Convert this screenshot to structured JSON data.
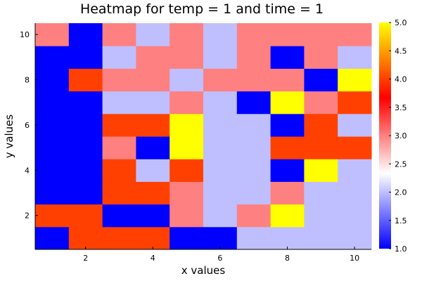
{
  "chart_data": {
    "type": "heatmap",
    "title": "Heatmap for temp = 1 and time = 1",
    "xlabel": "x values",
    "ylabel": "y values",
    "x": [
      1,
      2,
      3,
      4,
      5,
      6,
      7,
      8,
      9,
      10
    ],
    "y": [
      1,
      2,
      3,
      4,
      5,
      6,
      7,
      8,
      9,
      10
    ],
    "z": [
      [
        1,
        4,
        4,
        4,
        1,
        1,
        2,
        2,
        2,
        2
      ],
      [
        4,
        4,
        1,
        1,
        3,
        2,
        3,
        5,
        2,
        2
      ],
      [
        1,
        1,
        4,
        4,
        3,
        2,
        2,
        3,
        2,
        2
      ],
      [
        1,
        1,
        4,
        2,
        4,
        2,
        2,
        1,
        5,
        2
      ],
      [
        1,
        1,
        3,
        1,
        5,
        2,
        2,
        4,
        4,
        4
      ],
      [
        1,
        1,
        4,
        4,
        5,
        2,
        2,
        1,
        4,
        2
      ],
      [
        1,
        1,
        2,
        2,
        3,
        2,
        1,
        5,
        3,
        4
      ],
      [
        1,
        4,
        3,
        3,
        2,
        3,
        3,
        3,
        1,
        5
      ],
      [
        1,
        1,
        2,
        3,
        3,
        2,
        3,
        1,
        3,
        2
      ],
      [
        3,
        1,
        3,
        2,
        3,
        2,
        3,
        3,
        3,
        3
      ]
    ],
    "xlim": [
      0.5,
      10.5
    ],
    "ylim": [
      0.5,
      10.5
    ],
    "xticks": [
      2,
      4,
      6,
      8,
      10
    ],
    "yticks": [
      2,
      4,
      6,
      8,
      10
    ],
    "colorbar": {
      "min": 1.0,
      "max": 5.0,
      "ticks": [
        "1.0",
        "1.5",
        "2.0",
        "2.5",
        "3.0",
        "3.5",
        "4.0",
        "4.5",
        "5.0"
      ],
      "tick_values": [
        1.0,
        1.5,
        2.0,
        2.5,
        3.0,
        3.5,
        4.0,
        4.5,
        5.0
      ],
      "colormap": [
        "#0000ff",
        "#ffffff",
        "#ff0000",
        "#ffff00"
      ]
    },
    "grid": false,
    "legend": "none"
  }
}
